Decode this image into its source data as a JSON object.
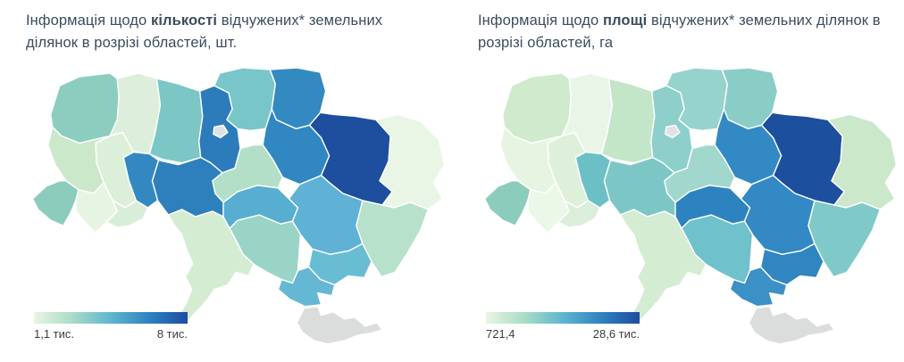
{
  "panels": [
    {
      "id": "count",
      "title_prefix": "Інформація щодо ",
      "title_bold": "кількості",
      "title_suffix": " відчужених* земельних ділянок в розрізі областей, шт.",
      "legend": {
        "min": "1,1 тис.",
        "max": "8 тис."
      },
      "regions": {
        "volyn": "#8ccdc0",
        "rivne": "#ddefdc",
        "zhytomyr": "#7cc6c6",
        "kyiv_obl": "#2c7cbb",
        "chernihiv": "#79c6ca",
        "sumy": "#338ac1",
        "poltava": "#3087c1",
        "kharkiv": "#1d4f9e",
        "luhansk": "#e9f6e6",
        "donetsk": "#b7e1ca",
        "dnipro": "#5fb2d6",
        "zaporizhzhia": "#68bdd3",
        "kherson": "#64b8d4",
        "mykolaiv": "#9ad4c7",
        "odesa": "#d4ecd1",
        "kirovohrad": "#57aed1",
        "cherkasy": "#b3dfc8",
        "vinnytsia": "#2e80bd",
        "khmelnytskyi": "#3488c1",
        "ternopil": "#dcefd8",
        "lviv": "#cce8cb",
        "zakarpattia": "#8cccbd",
        "ivano_frankivsk": "#e7f4e2",
        "chernivtsi": "#d9eed8",
        "crimea": "#dbdddd",
        "kyiv_city": "#e0e1e1"
      }
    },
    {
      "id": "area",
      "title_prefix": "Інформація щодо ",
      "title_bold": "площі",
      "title_suffix": " відчужених* земельних ділянок в розрізі областей, га",
      "legend": {
        "min": "721,4",
        "max": "28,6 тис."
      },
      "regions": {
        "volyn": "#cfeacd",
        "rivne": "#e9f6e7",
        "zhytomyr": "#c3e5c8",
        "kyiv_obl": "#8dcfca",
        "chernihiv": "#96d3cc",
        "sumy": "#8acdc7",
        "poltava": "#3389c3",
        "kharkiv": "#1d4f9f",
        "luhansk": "#cbe8ca",
        "donetsk": "#7fcac9",
        "dnipro": "#3389c4",
        "zaporizhzhia": "#2f86c1",
        "kherson": "#3b90c6",
        "mykolaiv": "#6fc1cb",
        "odesa": "#d4ecd1",
        "kirovohrad": "#2d83c0",
        "cherkasy": "#a2d7ce",
        "vinnytsia": "#7cc7c6",
        "khmelnytskyi": "#6cc0c5",
        "ternopil": "#def0da",
        "lviv": "#e7f4e1",
        "zakarpattia": "#8cccbd",
        "ivano_frankivsk": "#ebf7e7",
        "chernivtsi": "#daeeda",
        "crimea": "#dbdddd",
        "kyiv_city": "#e0e1e1"
      }
    }
  ],
  "legend_gradient": [
    "#e9f5e3",
    "#a9dcc6",
    "#5fb6cf",
    "#2e82c0",
    "#1c4da0"
  ],
  "map_border_color": "#ffffff",
  "background": "#ffffff"
}
